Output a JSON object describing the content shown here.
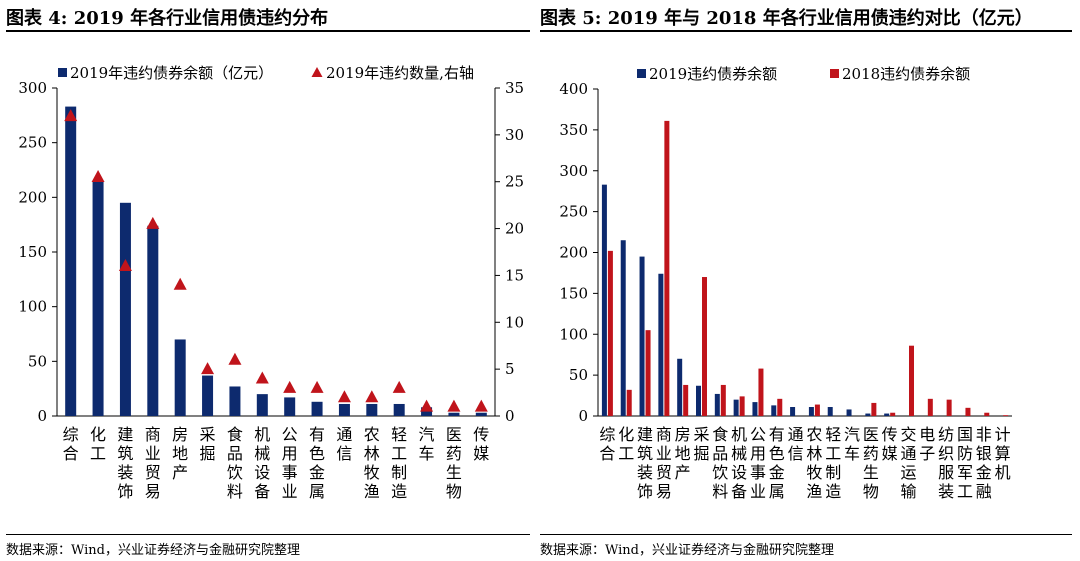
{
  "left": {
    "title": "图表 4:  2019 年各行业信用债违约分布",
    "source": "数据来源：Wind，兴业证券经济与金融研究院整理"
  },
  "right": {
    "title": "图表 5: 2019 年与 2018 年各行业信用债违约对比（亿元）",
    "source": "数据来源：Wind，兴业证券经济与金融研究院整理"
  },
  "colors": {
    "navy": "#0d2a6e",
    "red": "#c0141b"
  },
  "chart_data": [
    {
      "type": "bar",
      "categories": [
        "综合",
        "化工",
        "建筑装饰",
        "商业贸易",
        "房地产",
        "采掘",
        "食品饮料",
        "机械设备",
        "公用事业",
        "有色金属",
        "通信",
        "农林牧渔",
        "轻工制造",
        "汽车",
        "医药生物",
        "传媒"
      ],
      "series": [
        {
          "name": "2019年违约债券余额（亿元）",
          "type": "bar",
          "axis": "left",
          "values": [
            283,
            215,
            195,
            174,
            70,
            37,
            27,
            20,
            17,
            13,
            11,
            11,
            11,
            8,
            3,
            3
          ]
        },
        {
          "name": "2019年违约数量,右轴",
          "type": "scatter",
          "marker": "triangle",
          "axis": "right",
          "values": [
            32,
            25.5,
            16,
            20.5,
            14,
            5,
            6,
            4,
            3,
            3,
            2,
            2,
            3,
            1,
            1,
            1
          ]
        }
      ],
      "left_ticks": [
        0,
        50,
        100,
        150,
        200,
        250,
        300
      ],
      "ylim": [
        0,
        300
      ],
      "right_ticks": [
        0,
        5,
        10,
        15,
        20,
        25,
        30,
        35
      ],
      "y2lim": [
        0,
        35
      ],
      "legend": "top",
      "grid": false
    },
    {
      "type": "bar",
      "categories": [
        "综合",
        "化工",
        "建筑装饰",
        "商业贸易",
        "房地产",
        "采掘",
        "食品饮料",
        "机械设备",
        "公用事业",
        "有色金属",
        "通信",
        "农林牧渔",
        "轻工制造",
        "汽车",
        "医药生物",
        "传媒",
        "交通运输",
        "电子",
        "纺织服装",
        "国防军工",
        "非银金融",
        "计算机"
      ],
      "series": [
        {
          "name": "2019违约债券余额",
          "values": [
            283,
            215,
            195,
            174,
            70,
            37,
            27,
            20,
            17,
            13,
            11,
            11,
            11,
            8,
            3,
            3,
            0,
            0,
            0,
            0,
            0,
            0
          ]
        },
        {
          "name": "2018违约债券余额",
          "values": [
            202,
            32,
            105,
            361,
            38,
            170,
            38,
            24,
            58,
            21,
            0,
            14,
            0,
            0,
            16,
            4,
            86,
            21,
            20,
            10,
            4,
            1
          ]
        }
      ],
      "y_ticks": [
        0,
        50,
        100,
        150,
        200,
        250,
        300,
        350,
        400
      ],
      "ylim": [
        0,
        400
      ],
      "legend": "top",
      "grid": false
    }
  ]
}
